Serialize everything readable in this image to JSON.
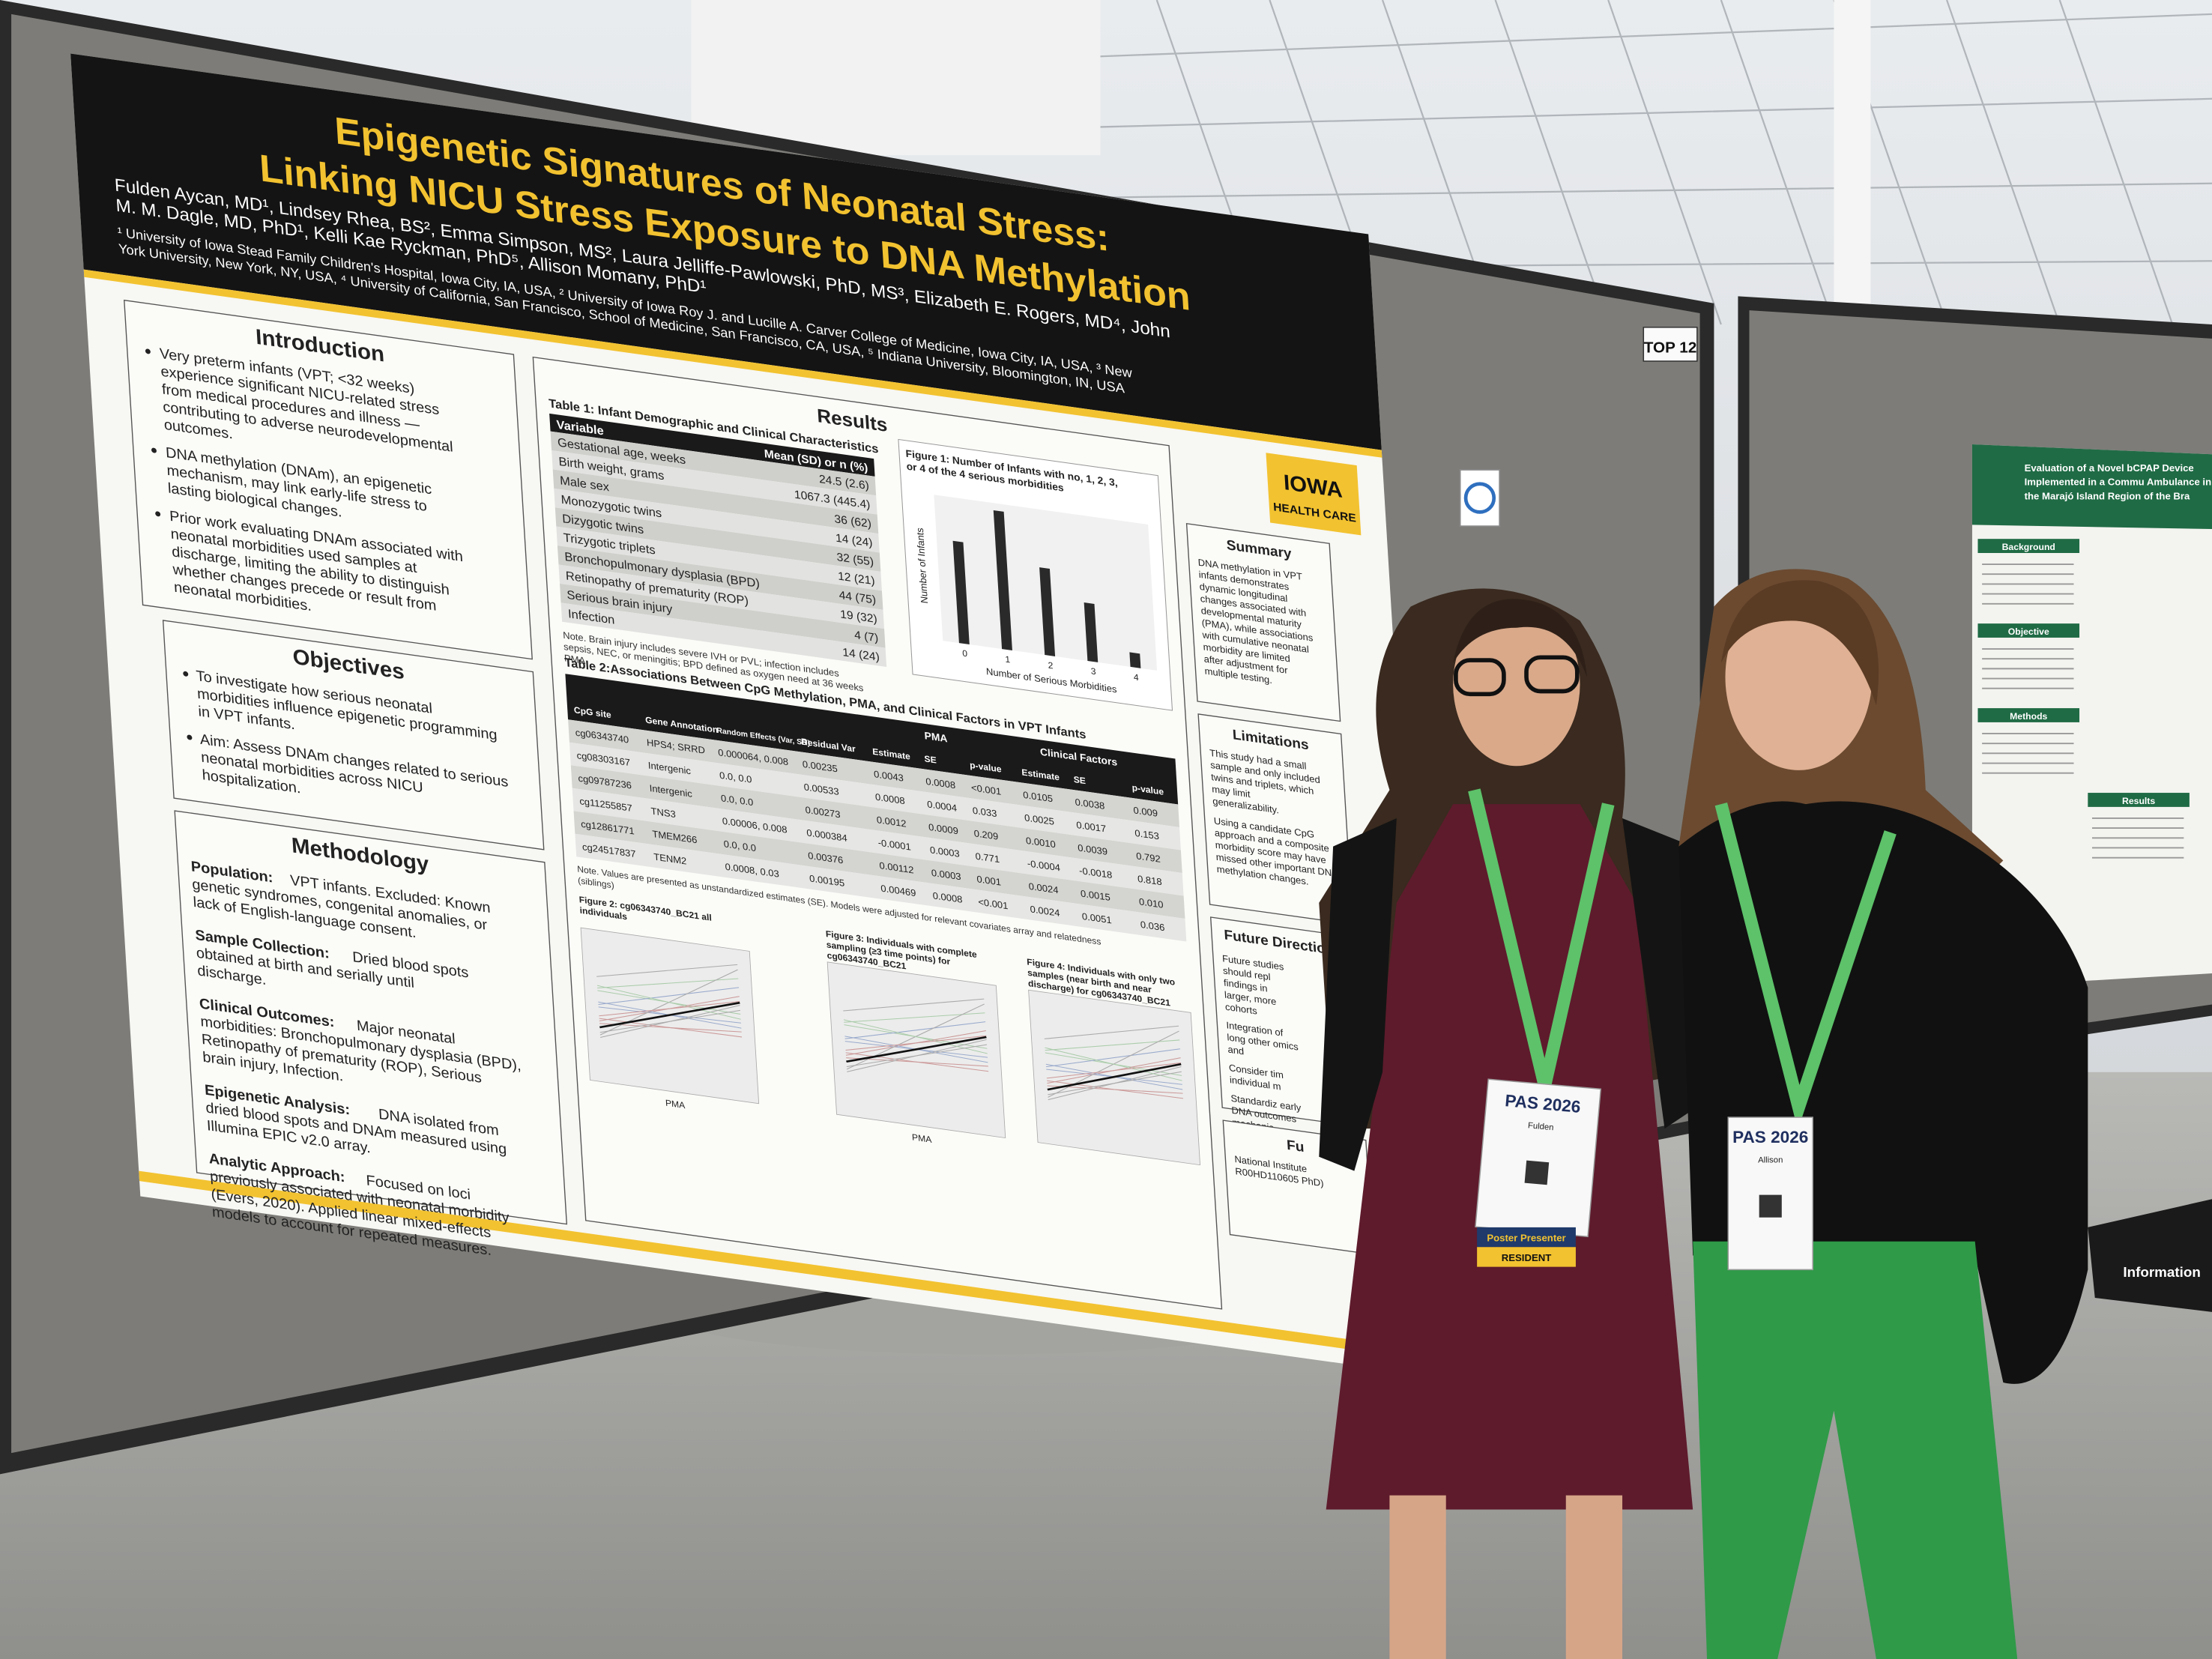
{
  "booth": {
    "tag": "TOP 12"
  },
  "poster": {
    "title": [
      "Epigenetic Signatures of Neonatal Stress:",
      "Linking NICU Stress Exposure to DNA Methylation"
    ],
    "authors": "Fulden Aycan, MD¹, Lindsey Rhea, BS², Emma Simpson, MS², Laura Jelliffe-Pawlowski, PhD, MS³, Elizabeth E. Rogers, MD⁴, John M. M. Dagle, MD, PhD¹, Kelli Kae Ryckman, PhD⁵, Allison Momany, PhD¹",
    "affiliations": "¹ University of Iowa Stead Family Children's Hospital, Iowa City, IA, USA, ² University of Iowa Roy J. and Lucille A. Carver College of Medicine, Iowa City, IA, USA, ³ New York University, New York, NY, USA, ⁴ University of California, San Francisco, School of Medicine, San Francisco, CA, USA, ⁵ Indiana University, Bloomington, IN, USA",
    "logo": [
      "IOWA",
      "HEALTH CARE"
    ],
    "introduction": {
      "heading": "Introduction",
      "bullets": [
        "Very preterm infants (VPT; <32 weeks) experience significant NICU-related stress from medical procedures and illness — contributing to adverse neurodevelopmental outcomes.",
        "DNA methylation (DNAm), an epigenetic mechanism, may link early-life stress to lasting biological changes.",
        "Prior work evaluating DNAm associated with neonatal morbidities used samples at discharge, limiting the ability to distinguish whether changes precede or result from neonatal morbidities."
      ]
    },
    "objectives": {
      "heading": "Objectives",
      "bullets": [
        "To investigate how serious neonatal morbidities influence epigenetic programming in VPT infants.",
        "Aim: Assess DNAm changes related to serious neonatal morbidities across NICU hospitalization."
      ]
    },
    "methodology": {
      "heading": "Methodology",
      "items": [
        {
          "label": "Population:",
          "text": "VPT infants. Excluded: Known genetic syndromes, congenital anomalies, or lack of English-language consent."
        },
        {
          "label": "Sample Collection:",
          "text": "Dried blood spots obtained at birth and serially until discharge."
        },
        {
          "label": "Clinical Outcomes:",
          "text": "Major neonatal morbidities: Bronchopulmonary dysplasia (BPD), Retinopathy of prematurity (ROP), Serious brain injury, Infection."
        },
        {
          "label": "Epigenetic Analysis:",
          "text": "DNA isolated from dried blood spots and DNAm measured using Illumina EPIC v2.0 array."
        },
        {
          "label": "Analytic Approach:",
          "text": "Focused on loci previously associated with neonatal morbidity (Evers, 2020). Applied linear mixed-effects models to account for repeated measures."
        }
      ]
    },
    "results": {
      "heading": "Results",
      "table1": {
        "caption": "Table 1: Infant Demographic and Clinical Characteristics",
        "columns": [
          "Variable",
          "Mean (SD) or n (%)"
        ],
        "rows": [
          [
            "Gestational age, weeks",
            "24.5 (2.6)"
          ],
          [
            "Birth weight, grams",
            "1067.3 (445.4)"
          ],
          [
            "Male sex",
            "36 (62)"
          ],
          [
            "Monozygotic twins",
            "14 (24)"
          ],
          [
            "Dizygotic twins",
            "32 (55)"
          ],
          [
            "Trizygotic triplets",
            "12 (21)"
          ],
          [
            "Bronchopulmonary dysplasia (BPD)",
            "44 (75)"
          ],
          [
            "Retinopathy of prematurity (ROP)",
            "19 (32)"
          ],
          [
            "Serious brain injury",
            "4 (7)"
          ],
          [
            "Infection",
            "14 (24)"
          ]
        ],
        "note": "Note. Brain injury includes severe IVH or PVL; infection includes sepsis, NEC, or meningitis; BPD defined as oxygen need at 36 weeks PMA."
      },
      "figure1": {
        "type": "bar",
        "title": "Figure 1: Number of Infants with no, 1, 2, 3, or 4 of the 4 serious morbidities",
        "x_label": "Number of Serious Morbidities",
        "y_label": "Number of Infants",
        "categories": [
          "0",
          "1",
          "2",
          "3",
          "4"
        ],
        "values": [
          14,
          19,
          12,
          8,
          2
        ],
        "ylim": [
          0,
          20
        ],
        "color": "#2a2a2a"
      },
      "table2": {
        "caption": "Table 2:Associations Between CpG Methylation, PMA, and Clinical Factors in VPT Infants",
        "groups": [
          "PMA",
          "Clinical Factors"
        ],
        "columns": [
          "CpG site",
          "Gene Annotation",
          "Random Effects (Var, SD)",
          "Residual Var",
          "Estimate",
          "SE",
          "p-value",
          "Estimate",
          "SE",
          "p-value"
        ],
        "rows": [
          [
            "cg06343740",
            "HPS4; SRRD",
            "0.000064, 0.008",
            "0.00235",
            "0.0043",
            "0.0008",
            "<0.001",
            "0.0105",
            "0.0038",
            "0.009"
          ],
          [
            "cg08303167",
            "Intergenic",
            "0.0, 0.0",
            "0.00533",
            "0.0008",
            "0.0004",
            "0.033",
            "0.0025",
            "0.0017",
            "0.153"
          ],
          [
            "cg09787236",
            "Intergenic",
            "0.0, 0.0",
            "0.00273",
            "0.0012",
            "0.0009",
            "0.209",
            "0.0010",
            "0.0039",
            "0.792"
          ],
          [
            "cg11255857",
            "TNS3",
            "0.00006, 0.008",
            "0.000384",
            "-0.0001",
            "0.0003",
            "0.771",
            "-0.0004",
            "-0.0018",
            "0.818"
          ],
          [
            "cg12861771",
            "TMEM266",
            "0.0, 0.0",
            "0.00376",
            "0.00112",
            "0.0003",
            "0.001",
            "0.0024",
            "0.0015",
            "0.010"
          ],
          [
            "cg24517837",
            "TENM2",
            "0.0008, 0.03",
            "0.00195",
            "0.00469",
            "0.0008",
            "<0.001",
            "0.0024",
            "0.0051",
            "0.036"
          ]
        ],
        "note": "Note. Values are presented as unstandardized estimates (SE). Models were adjusted for relevant covariates array and relatedness (siblings)"
      },
      "figure2": {
        "title": "Figure 2: cg06343740_BC21 all individuals",
        "x_label": "PMA"
      },
      "figure3": {
        "title": "Figure 3: Individuals with complete sampling (≥3 time points) for cg06343740_BC21",
        "x_label": "PMA"
      },
      "figure4": {
        "title": "Figure 4: Individuals with only two samples (near birth and near discharge) for cg06343740_BC21"
      }
    },
    "summary": {
      "heading": "Summary",
      "text": "DNA methylation in VPT infants demonstrates dynamic longitudinal changes associated with developmental maturity (PMA), while associations with cumulative neonatal morbidity are limited after adjustment for multiple testing."
    },
    "limitations": {
      "heading": "Limitations",
      "bullets": [
        "This study had a small sample and only included twins and triplets, which may limit generalizability.",
        "Using a candidate CpG approach and a composite morbidity score may have missed other important DNA methylation changes."
      ]
    },
    "future_directions": {
      "heading": "Future Directions",
      "bullets": [
        "Future studies should repl findings in larger, more cohorts",
        "Integration of long other omics and",
        "Consider tim individual m",
        "Standardiz early DNA outcomes mechanis biomarkers"
      ]
    },
    "funding": {
      "heading": "Fu",
      "text": "National Institute R00HD110605 PhD)"
    }
  },
  "badges": [
    {
      "event": "PAS 2026",
      "name": "Fulden",
      "ribbon": [
        "Poster Presenter",
        "RESIDENT"
      ]
    },
    {
      "event": "PAS 2026",
      "name": "Allison"
    }
  ],
  "second_poster": {
    "title": "Evaluation of a Novel bCPAP Device Implemented in a Commu Ambulance in the Marajó Island Region of the Bra",
    "sections": [
      "Background",
      "Objective",
      "Methods",
      "Results"
    ]
  },
  "bag_text": "Information"
}
